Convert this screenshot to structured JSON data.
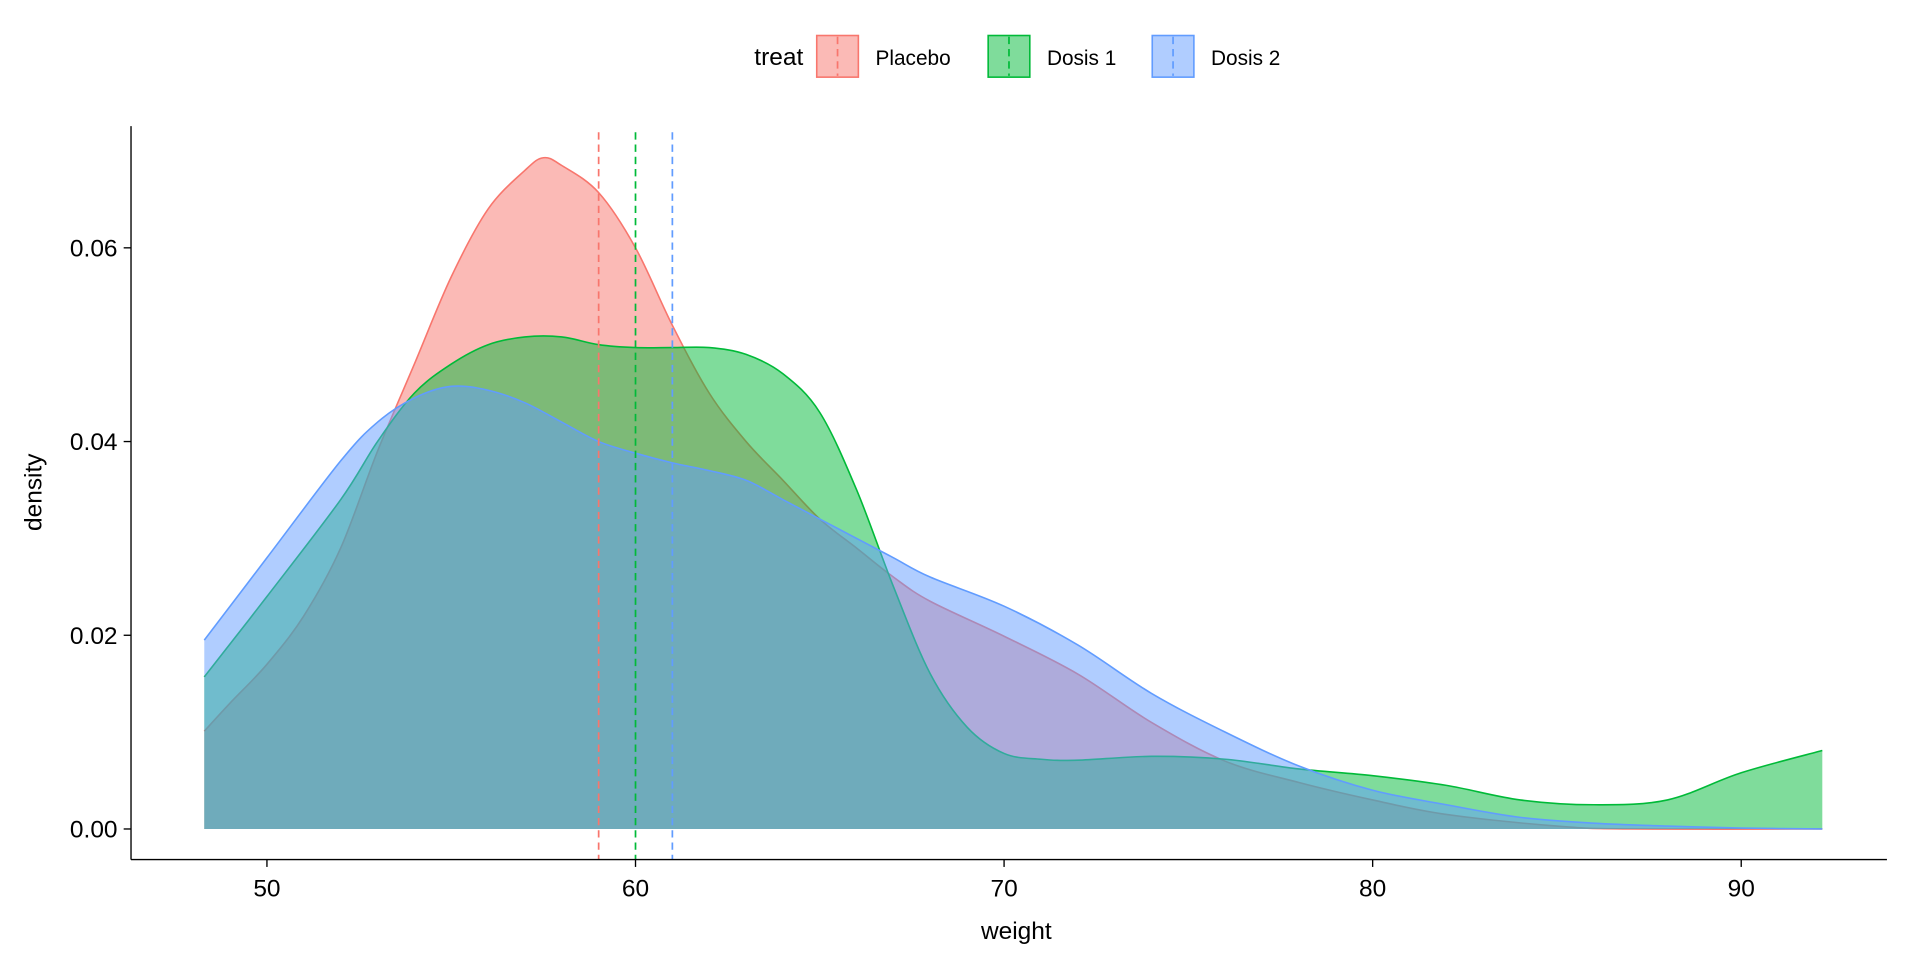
{
  "chart_data": {
    "type": "area",
    "subtype": "density",
    "xlabel": "weight",
    "ylabel": "density",
    "xlim": [
      46.5,
      94.5
    ],
    "ylim": [
      -0.0032,
      0.072
    ],
    "xticks": [
      50,
      60,
      70,
      80,
      90
    ],
    "xtick_labels": [
      "50",
      "60",
      "70",
      "80",
      "90"
    ],
    "yticks": [
      0,
      0.02,
      0.04,
      0.06
    ],
    "ytick_labels": [
      "0.00",
      "0.02",
      "0.04",
      "0.06"
    ],
    "grid": false,
    "legend": {
      "title": "treat",
      "placement": "top"
    },
    "series": [
      {
        "name": "Placebo",
        "color": "#F8766D",
        "mean": 59.0,
        "x": [
          48.3,
          49,
          50,
          51,
          52,
          53,
          54,
          55,
          56,
          57,
          57.5,
          58,
          59,
          60,
          61,
          62,
          63,
          64,
          65,
          66,
          67,
          68,
          70,
          72,
          74,
          76,
          78,
          80,
          82,
          85,
          87,
          92.2
        ],
        "y": [
          0.0101,
          0.013,
          0.017,
          0.022,
          0.029,
          0.039,
          0.048,
          0.057,
          0.064,
          0.068,
          0.0693,
          0.0685,
          0.0657,
          0.06,
          0.052,
          0.045,
          0.04,
          0.036,
          0.032,
          0.029,
          0.026,
          0.0235,
          0.0199,
          0.016,
          0.011,
          0.007,
          0.0048,
          0.003,
          0.0015,
          0.0003,
          0.0,
          0.0
        ]
      },
      {
        "name": "Dosis 1",
        "color": "#00BA38",
        "mean": 60.0,
        "x": [
          48.3,
          50,
          52,
          53,
          54,
          55,
          56,
          57,
          58,
          59,
          60,
          61,
          62,
          63,
          64,
          65,
          66,
          67,
          68,
          69,
          70,
          71,
          72,
          74,
          76,
          78,
          80,
          82,
          84,
          86,
          88,
          90,
          92.2
        ],
        "y": [
          0.0157,
          0.024,
          0.034,
          0.04,
          0.045,
          0.048,
          0.05,
          0.0508,
          0.0508,
          0.05,
          0.0497,
          0.0497,
          0.0497,
          0.049,
          0.047,
          0.043,
          0.035,
          0.025,
          0.016,
          0.0105,
          0.0078,
          0.0072,
          0.0071,
          0.0075,
          0.0072,
          0.0062,
          0.0055,
          0.0045,
          0.003,
          0.0025,
          0.003,
          0.0058,
          0.0081
        ]
      },
      {
        "name": "Dosis 2",
        "color": "#619CFF",
        "mean": 61.0,
        "x": [
          48.3,
          50,
          52,
          53,
          54,
          55,
          56,
          57,
          58,
          59,
          60,
          61,
          62,
          63,
          64,
          65,
          66,
          67,
          68,
          70,
          72,
          74,
          76,
          78,
          80,
          82,
          84,
          86,
          88,
          90,
          92.2
        ],
        "y": [
          0.0195,
          0.028,
          0.038,
          0.042,
          0.0445,
          0.0457,
          0.0453,
          0.044,
          0.042,
          0.04,
          0.0388,
          0.0378,
          0.037,
          0.036,
          0.034,
          0.032,
          0.03,
          0.028,
          0.026,
          0.023,
          0.019,
          0.014,
          0.01,
          0.0065,
          0.004,
          0.0025,
          0.0012,
          0.0006,
          0.0003,
          0.0001,
          0.0
        ]
      }
    ]
  }
}
